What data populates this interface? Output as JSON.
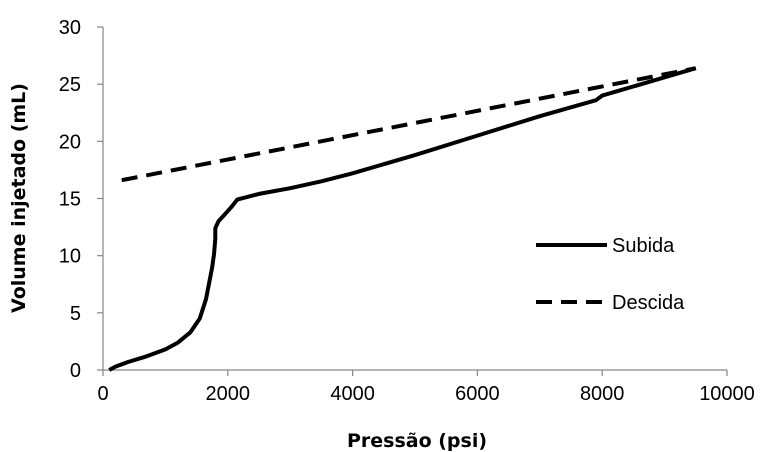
{
  "chart_data": {
    "type": "line",
    "title": "",
    "xlabel": "Pressão (psi)",
    "ylabel": "Volume injetado (mL)",
    "xlim": [
      0,
      10000
    ],
    "ylim": [
      0,
      30
    ],
    "xticks": [
      0,
      2000,
      4000,
      6000,
      8000,
      10000
    ],
    "yticks": [
      0,
      5,
      10,
      15,
      20,
      25,
      30
    ],
    "grid": false,
    "legend_position": "right",
    "series": [
      {
        "name": "Subida",
        "style": "solid",
        "color": "#000000",
        "x": [
          100,
          200,
          400,
          700,
          1000,
          1200,
          1400,
          1550,
          1650,
          1700,
          1750,
          1780,
          1800,
          1800,
          1850,
          1950,
          2050,
          2150,
          2500,
          3000,
          3500,
          4000,
          5000,
          6000,
          7000,
          7900,
          8000,
          9000,
          9500
        ],
        "y": [
          0,
          0.3,
          0.7,
          1.2,
          1.8,
          2.4,
          3.3,
          4.5,
          6.2,
          7.6,
          9.0,
          10.2,
          11.5,
          12.4,
          13.0,
          13.6,
          14.2,
          14.9,
          15.4,
          15.9,
          16.5,
          17.2,
          18.8,
          20.5,
          22.2,
          23.6,
          24.0,
          25.6,
          26.4
        ]
      },
      {
        "name": "Descida",
        "style": "dashed",
        "color": "#000000",
        "x": [
          300,
          9500
        ],
        "y": [
          16.6,
          26.4
        ]
      }
    ]
  }
}
